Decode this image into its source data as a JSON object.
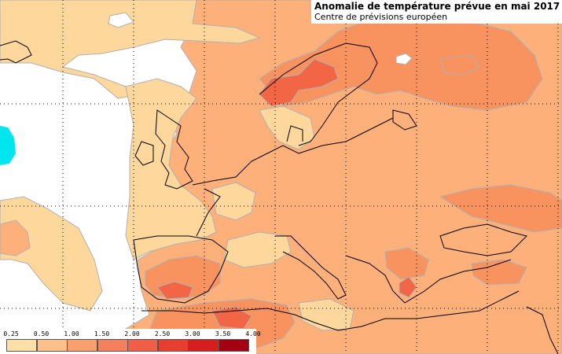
{
  "title": "Anomalie de température prévue en mai 2017",
  "subtitle": "Centre de prévisions européen",
  "legend": {
    "ticks": [
      "0.25",
      "0.50",
      "1.00",
      "1.50",
      "2.00",
      "2.50",
      "3.00",
      "3.50",
      "4.00"
    ],
    "colors": [
      "#fde0a8",
      "#fdc08a",
      "#f9a06e",
      "#f6805e",
      "#f15e47",
      "#e63e2f",
      "#d61e1e",
      "#a50012"
    ]
  },
  "palette": {
    "sea_white": "#ffffff",
    "cold_cyan": "#00e5ee",
    "contour": "#b0b0b0",
    "coast": "#000000",
    "grid": "#000000"
  }
}
